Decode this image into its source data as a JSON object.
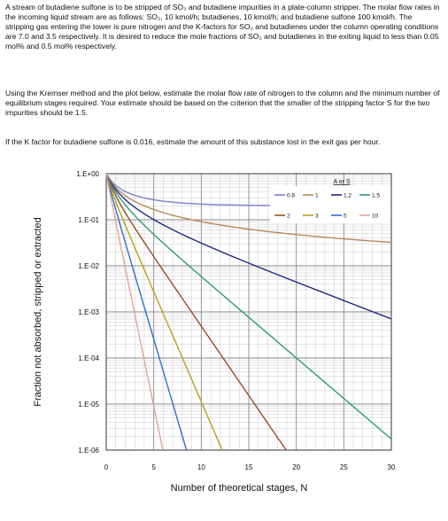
{
  "problem": {
    "paragraph1": "A stream of butadiene sulfone is to be stripped of SO₂ and butadiene impurities in a plate-column stripper. The molar flow rates in the incoming liquid stream are as follows: SO₂, 10 kmol/h; butadienes, 10 kmol/h; and butadiene sulfone 100 kmol/h. The stripping gas entering the tower is pure nitrogen and the K-factors for SO₂ and butadienes under the column operating conditions are 7.0 and 3.5 respectively. It is desired to reduce the mole fractions of SO₂ and butadienes in the exiting liquid to less than 0.05 mol% and 0.5 mol% respectively.",
    "paragraph2": "Using the Kremser method and the plot below, estimate the molar flow rate of nitrogen to the column and the minimum number of equilibrium stages required. Your estimate should be based on the criterion that the smaller of the stripping factor S for the two impurities should be 1.5.",
    "paragraph3": "If the K factor for butadiene sulfone is 0.016, estimate the amount of this substance lost in the exit gas per hour."
  },
  "chart_data": {
    "type": "line",
    "xlabel": "Number of theoretical stages, N",
    "ylabel": "Fraction not absorbed, stripped or extracted",
    "xlim": [
      0,
      30
    ],
    "ylim": [
      1e-06,
      1
    ],
    "yscale": "log",
    "grid": true,
    "x_ticks": [
      "0",
      "5",
      "10",
      "15",
      "20",
      "25",
      "30"
    ],
    "y_ticks": [
      "1.E+00",
      "1.E-01",
      "1.E-02",
      "1.E-03",
      "1.E-04",
      "1.E-05",
      "1.E-06"
    ],
    "legend_title": "A or S",
    "legend_position": "top-right",
    "formula": "fraction = (S - 1) / (S^(N+1) - 1)",
    "series": [
      {
        "name": "0.8",
        "factor": 0.8,
        "color": "#7b7fd4"
      },
      {
        "name": "1",
        "factor": 1,
        "color": "#b5895a"
      },
      {
        "name": "1.2",
        "factor": 1.2,
        "color": "#1f2a8a"
      },
      {
        "name": "1.5",
        "factor": 1.5,
        "color": "#2e9b7c"
      },
      {
        "name": "2",
        "factor": 2,
        "color": "#9b4f1d"
      },
      {
        "name": "3",
        "factor": 3,
        "color": "#b8a11a"
      },
      {
        "name": "5",
        "factor": 5,
        "color": "#2b6fd0"
      },
      {
        "name": "10",
        "factor": 10,
        "color": "#e0a49a"
      }
    ]
  }
}
